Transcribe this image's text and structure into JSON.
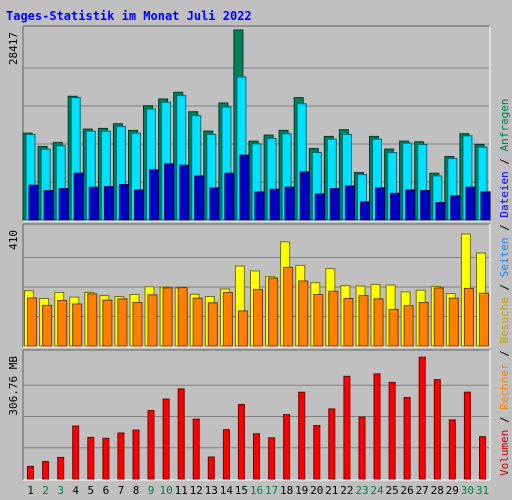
{
  "page": {
    "background": "#c0c0c0",
    "panel_background": "#c0c0c0",
    "frame_dark": "#606060",
    "frame_light": "#ffffff",
    "gridline": "#808080"
  },
  "chart_data": {
    "type": "bar",
    "title": "Tages-Statistik im Monat Juli 2022",
    "title_color": "#0000ff",
    "categories": [
      "1",
      "2",
      "3",
      "4",
      "5",
      "6",
      "7",
      "8",
      "9",
      "10",
      "11",
      "12",
      "13",
      "14",
      "15",
      "16",
      "17",
      "18",
      "19",
      "20",
      "21",
      "22",
      "23",
      "24",
      "25",
      "26",
      "27",
      "28",
      "29",
      "30",
      "31"
    ],
    "weekend_categories": [
      "2",
      "3",
      "9",
      "10",
      "16",
      "17",
      "23",
      "24",
      "30",
      "31"
    ],
    "weekday_color": "#000000",
    "weekend_color": "#008040",
    "panels": [
      {
        "id": "top",
        "ytick_label": "28417",
        "ytick_value": 28417,
        "ylim": [
          0,
          28417
        ],
        "series": [
          {
            "name": "Anfragen",
            "color": "#00805c",
            "values": [
              13000,
              11000,
              11600,
              18500,
              13600,
              13700,
              14400,
              13400,
              17100,
              18100,
              19100,
              16200,
              13300,
              17500,
              28417,
              11800,
              12700,
              13400,
              18300,
              10700,
              12500,
              13500,
              7100,
              12500,
              10600,
              11800,
              11700,
              7000,
              9500,
              12900,
              11300
            ]
          },
          {
            "name": "Dateien",
            "color": "#00e0ff",
            "values": [
              12800,
              10600,
              11100,
              18300,
              13300,
              13300,
              14000,
              13000,
              16600,
              17600,
              18600,
              15600,
              12800,
              16900,
              21400,
              11400,
              12200,
              12900,
              17400,
              10100,
              12100,
              12800,
              6800,
              12100,
              10100,
              11500,
              11300,
              6600,
              9200,
              12600,
              10900
            ]
          },
          {
            "name": "Seiten",
            "color": "#0000c0",
            "values": [
              5200,
              4400,
              4700,
              7000,
              4900,
              5000,
              5300,
              4500,
              7500,
              8400,
              8200,
              6600,
              4800,
              7000,
              9700,
              4200,
              4600,
              4900,
              7200,
              3900,
              4700,
              5100,
              2700,
              4800,
              4000,
              4500,
              4400,
              2600,
              3600,
              4900,
              4200
            ]
          }
        ]
      },
      {
        "id": "middle",
        "ytick_label": "410",
        "ytick_value": 410,
        "ylim": [
          0,
          410
        ],
        "series": [
          {
            "name": "Besuche",
            "color": "#ffff00",
            "values": [
              192,
              165,
              186,
              170,
              186,
              175,
              172,
              179,
              206,
              205,
              202,
              180,
              172,
              198,
              278,
              261,
              241,
              362,
              280,
              220,
              269,
              210,
              208,
              214,
              212,
              188,
              194,
              207,
              182,
              389,
              323
            ]
          },
          {
            "name": "Rechner",
            "color": "#ff8000",
            "values": [
              167,
              141,
              158,
              146,
              181,
              159,
              164,
              151,
              178,
              202,
              203,
              166,
              150,
              186,
              122,
              196,
              236,
              273,
              226,
              179,
              190,
              165,
              175,
              164,
              127,
              140,
              151,
              202,
              166,
              200,
              183
            ]
          }
        ]
      },
      {
        "id": "bottom",
        "ytick_label": "306.76 MB",
        "ytick_value": 306.76,
        "ylim": [
          0,
          306.76
        ],
        "series": [
          {
            "name": "Volumen",
            "color": "#ff0000",
            "values": [
              31,
              43,
              53,
              130,
              102,
              100,
              113,
              120,
              168,
              196,
              221,
              147,
              54,
              121,
              183,
              111,
              101,
              158,
              213,
              131,
              172,
              252,
              152,
              258,
              237,
              200,
              299,
              244,
              145,
              213,
              104
            ]
          }
        ]
      }
    ],
    "side_legend": [
      {
        "text": "Volumen",
        "color": "#cc0000"
      },
      {
        "text": " / ",
        "color": "#000000"
      },
      {
        "text": "Rechner",
        "color": "#ff8000"
      },
      {
        "text": " / ",
        "color": "#000000"
      },
      {
        "text": "Besuche",
        "color": "#c8a000"
      },
      {
        "text": " / ",
        "color": "#000000"
      },
      {
        "text": "Seiten",
        "color": "#2080ff"
      },
      {
        "text": " / ",
        "color": "#000000"
      },
      {
        "text": "Dateien",
        "color": "#0000ff"
      },
      {
        "text": " / ",
        "color": "#000000"
      },
      {
        "text": "Anfragen",
        "color": "#008040"
      }
    ]
  }
}
